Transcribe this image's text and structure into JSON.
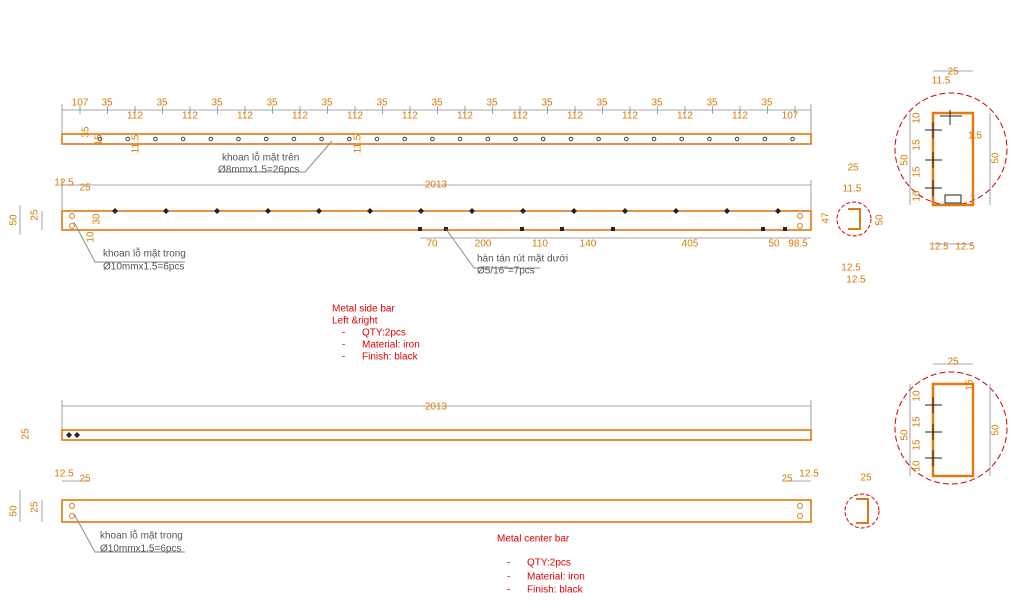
{
  "side_bar": {
    "top_view": {
      "end_dims": [
        "107",
        "107"
      ],
      "hole_dims": [
        "35",
        "35",
        "35",
        "35",
        "35",
        "35",
        "35",
        "35",
        "35",
        "35",
        "35",
        "35",
        "35"
      ],
      "gap_dims": [
        "112",
        "112",
        "112",
        "112",
        "112",
        "112",
        "112",
        "112",
        "112",
        "112",
        "112",
        "112"
      ],
      "side_dims": [
        "35",
        "15",
        "11.5",
        "11.5"
      ],
      "note": [
        "khoan lỗ mặt trên",
        "Ø8mmx1.5=26pcs"
      ]
    },
    "front_view": {
      "dims": [
        "12.5",
        "25",
        "2013",
        "50",
        "25",
        "30",
        "10"
      ],
      "bottom_dims": [
        "70",
        "200",
        "110",
        "140",
        "405",
        "50",
        "98.5"
      ],
      "hole_note": [
        "khoan lỗ mặt trong",
        "Ø10mmx1.5=6pcs"
      ],
      "rivet_note": [
        "hàn tán rút mặt dưới",
        "Ø5/16\"=7pcs"
      ]
    },
    "small_section": [
      "25",
      "11.5",
      "47",
      "50",
      "12.5",
      "12.5"
    ],
    "large_section": [
      "25",
      "11.5",
      "1.5",
      "50",
      "50",
      "10",
      "15",
      "15",
      "10",
      "12.5",
      "12.5"
    ],
    "spec": {
      "title": "Metal side bar",
      "subtitle": "Left &right",
      "bullet": "-",
      "items": [
        "QTY:2pcs",
        "Material: iron",
        "Finish: black"
      ]
    }
  },
  "center_bar": {
    "top_view": {
      "dims": [
        "2013",
        "25"
      ]
    },
    "front_view": {
      "dims": [
        "12.5",
        "25",
        "25",
        "12.5",
        "50",
        "25"
      ],
      "hole_note": [
        "khoan lỗ mặt trong",
        "Ø10mmx1.5=6pcs"
      ]
    },
    "small_section": [
      "25"
    ],
    "large_section": [
      "25",
      "15",
      "10",
      "15",
      "15",
      "10",
      "50",
      "50"
    ],
    "spec": {
      "title": "Metal center bar",
      "bullet": "-",
      "items": [
        "QTY:2pcs",
        "Material: iron",
        "Finish: black"
      ]
    }
  }
}
